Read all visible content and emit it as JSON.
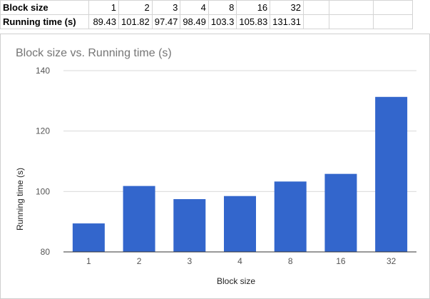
{
  "table": {
    "rows": [
      {
        "label": "Block size",
        "cells": [
          "1",
          "2",
          "3",
          "4",
          "8",
          "16",
          "32",
          "",
          "",
          ""
        ]
      },
      {
        "label": "Running time (s)",
        "cells": [
          "89.43",
          "101.82",
          "97.47",
          "98.49",
          "103.3",
          "105.83",
          "131.31",
          "",
          "",
          ""
        ]
      }
    ]
  },
  "chart_data": {
    "type": "bar",
    "title": "Block size vs. Running time (s)",
    "xlabel": "Block size",
    "ylabel": "Running time (s)",
    "categories": [
      "1",
      "2",
      "3",
      "4",
      "8",
      "16",
      "32"
    ],
    "series": [
      {
        "values": [
          89.43,
          101.82,
          97.47,
          98.49,
          103.3,
          105.83,
          131.31
        ]
      }
    ],
    "ylim": [
      80,
      140
    ],
    "yticks": [
      80,
      100,
      120,
      140
    ],
    "grid": true,
    "legend": "none",
    "colors": {
      "bar": "#3366cc",
      "gridline": "#d9d9d9",
      "baseline": "#333333",
      "title": "#757575",
      "tick_label": "#555555",
      "axis_label": "#222222"
    }
  }
}
